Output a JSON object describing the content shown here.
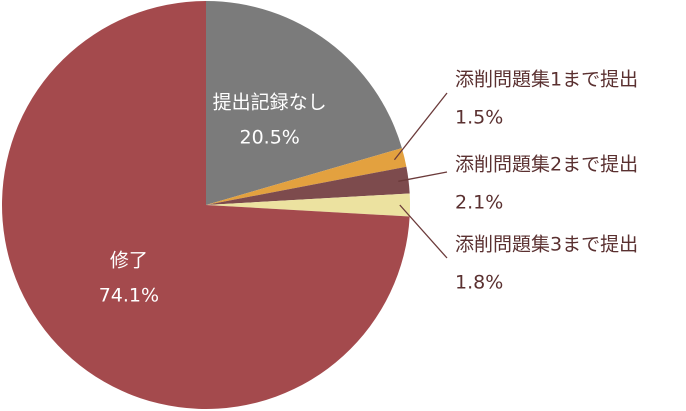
{
  "chart_data": {
    "type": "pie",
    "categories": [
      "提出記録なし",
      "添削問題集1まで提出",
      "添削問題集2まで提出",
      "添削問題集3まで提出",
      "修了"
    ],
    "values": [
      20.5,
      1.5,
      2.1,
      1.8,
      74.1
    ],
    "value_labels": [
      "20.5%",
      "1.5%",
      "2.1%",
      "1.8%",
      "74.1%"
    ],
    "colors": [
      "#7b7b7b",
      "#e3a13f",
      "#7d4b4d",
      "#ece2a0",
      "#a44a4d"
    ]
  }
}
